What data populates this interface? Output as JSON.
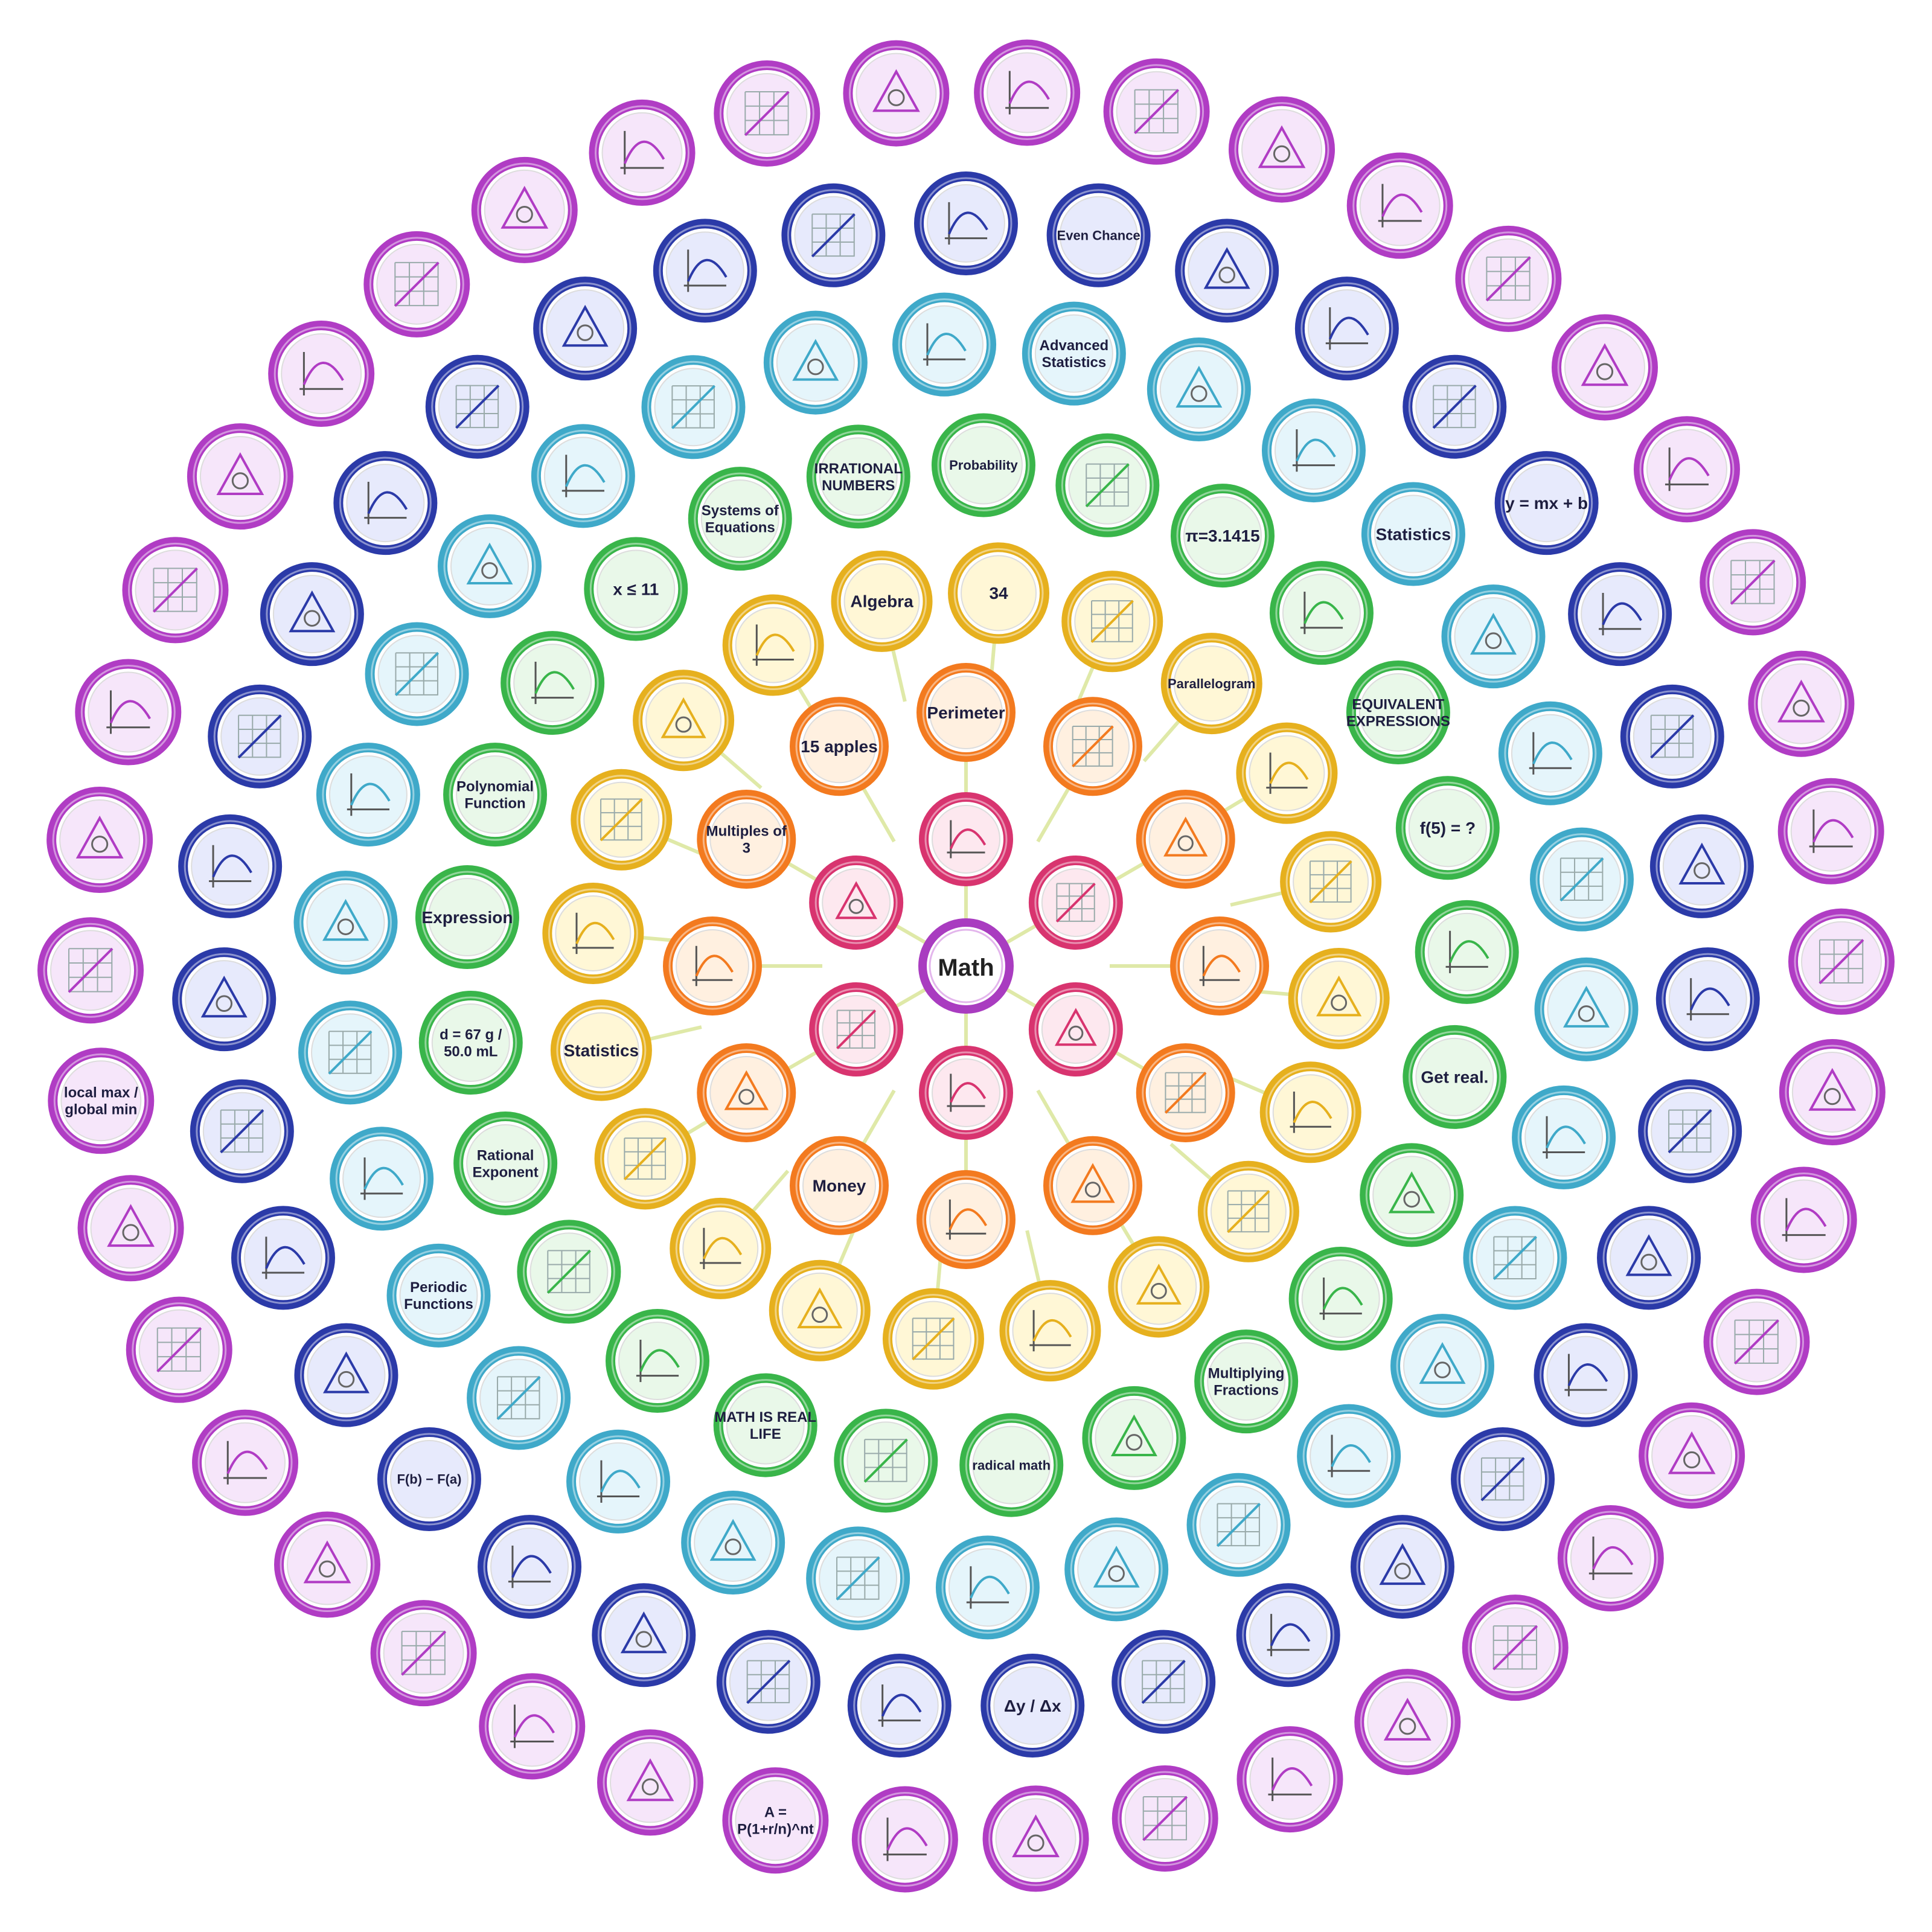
{
  "center": {
    "label": "Math"
  },
  "palette": {
    "rose": "#d8346f",
    "orange": "#f37a1f",
    "gold": "#e6b01e",
    "green": "#39b54a",
    "teal": "#3fa9c9",
    "navy": "#2b3aa8",
    "violet": "#b03cc4",
    "link": "#dfe9a8",
    "background": "#ffffff"
  },
  "rings": [
    {
      "ring": "rose",
      "labels": [
        "",
        "",
        "",
        "",
        "",
        ""
      ]
    },
    {
      "ring": "orange",
      "labels": [
        "Perimeter",
        "",
        "",
        "",
        "",
        "",
        "",
        "Money",
        "",
        "",
        "Multiples of 3",
        "15 apples"
      ]
    },
    {
      "ring": "gold",
      "labels": [
        "34",
        "",
        "Parallelogram",
        "",
        "",
        "",
        "",
        "",
        "",
        "",
        "",
        "",
        "",
        "",
        "Statistics",
        "",
        "",
        "",
        "",
        "Algebra"
      ]
    },
    {
      "ring": "green",
      "labels": [
        "Probability",
        "",
        "π=3.1415",
        "",
        "EQUIVALENT EXPRESSIONS",
        "f(5) = ?",
        "",
        "Get real.",
        "",
        "",
        "Multiplying Fractions",
        "",
        "radical math",
        "",
        "MATH IS REAL LIFE",
        "",
        "",
        "Rational Exponent",
        "d = 67 g / 50.0 mL",
        "Expression",
        "Polynomial Function",
        "",
        "x ≤ 11",
        "Systems of Equations",
        "IRRATIONAL NUMBERS"
      ]
    },
    {
      "ring": "teal",
      "labels": [
        "",
        "Advanced Statistics",
        "",
        "",
        "Statistics",
        "",
        "",
        "",
        "",
        "",
        "",
        "",
        "",
        "",
        "",
        "",
        "",
        "",
        "",
        "",
        "Periodic Functions",
        "",
        "",
        "",
        "",
        "",
        "",
        "",
        "",
        ""
      ]
    },
    {
      "ring": "navy",
      "labels": [
        "",
        "Even Chance",
        "",
        "",
        "",
        "y = mx + b",
        "",
        "",
        "",
        "",
        "",
        "",
        "",
        "",
        "",
        "",
        "",
        "Δy / Δx",
        "",
        "",
        "",
        "",
        "F(b) − F(a)",
        "",
        "",
        "",
        "",
        "",
        "",
        "",
        "",
        "",
        "",
        "",
        ""
      ]
    },
    {
      "ring": "violet",
      "labels": [
        "",
        "",
        "",
        "",
        "",
        "",
        "",
        "",
        "",
        "",
        "",
        "",
        "",
        "",
        "",
        "",
        "",
        "",
        "",
        "",
        "",
        "",
        "A = P(1+r/n)^nt",
        "",
        "",
        "",
        "",
        "",
        "",
        "",
        "local max / global min",
        "",
        "",
        "",
        "",
        "",
        "",
        "",
        "",
        "",
        "",
        ""
      ]
    }
  ]
}
